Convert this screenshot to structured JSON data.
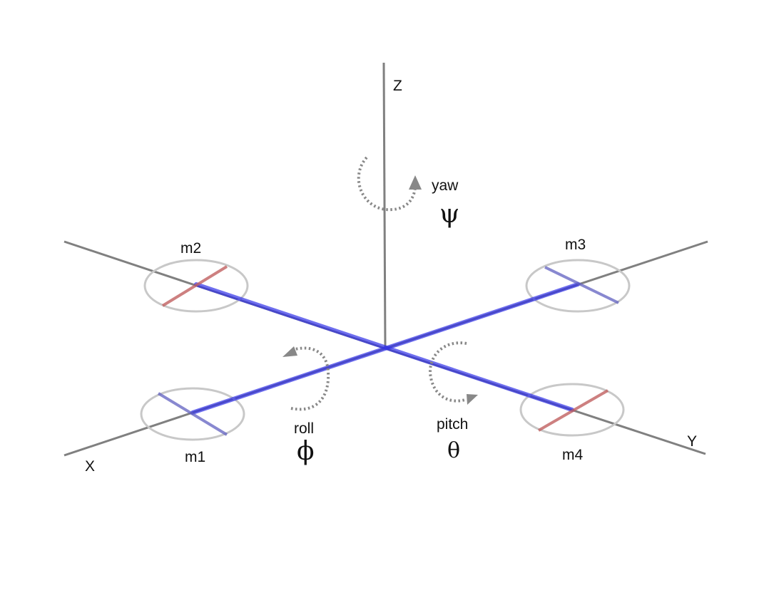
{
  "axes": {
    "x": "X",
    "y": "Y",
    "z": "Z"
  },
  "motors": {
    "m1": "m1",
    "m2": "m2",
    "m3": "m3",
    "m4": "m4"
  },
  "rotations": {
    "yaw": {
      "label": "yaw",
      "symbol": "ψ"
    },
    "roll": {
      "label": "roll",
      "symbol": "ϕ"
    },
    "pitch": {
      "label": "pitch",
      "symbol": "θ"
    }
  },
  "colors": {
    "axis": "#808080",
    "arm": "#3030e8",
    "rotor_ring": "#c8c8c8",
    "blade_red": "#c06060",
    "blade_blue": "#6060c0",
    "arrow": "#888888"
  }
}
